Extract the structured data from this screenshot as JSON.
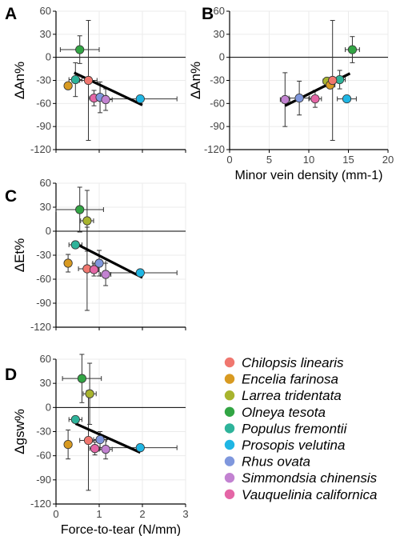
{
  "legend": {
    "species": [
      {
        "name": "Chilopsis linearis",
        "color": "#F0776F"
      },
      {
        "name": "Encelia farinosa",
        "color": "#D89A21"
      },
      {
        "name": "Larrea tridentata",
        "color": "#A8B42E"
      },
      {
        "name": "Olneya tesota",
        "color": "#32A544"
      },
      {
        "name": "Populus fremontii",
        "color": "#2EB39A"
      },
      {
        "name": "Prosopis velutina",
        "color": "#1FB6E4"
      },
      {
        "name": "Rhus ovata",
        "color": "#7F97DD"
      },
      {
        "name": "Simmondsia chinensis",
        "color": "#C282D1"
      },
      {
        "name": "Vauquelinia californica",
        "color": "#E466A6"
      }
    ]
  },
  "chart_data": [
    {
      "type": "scatter",
      "panel": "A",
      "ylabel": "ΔAn%",
      "xlabel": "",
      "xlim": [
        0,
        3
      ],
      "ylim": [
        -120,
        60
      ],
      "x_ticks": [
        0,
        1,
        2,
        3
      ],
      "x_tick_labels": [],
      "y_ticks": [
        -120,
        -90,
        -60,
        -30,
        0,
        30,
        60
      ],
      "points": [
        {
          "species": "Olneya tesota",
          "x": 0.55,
          "y": 10,
          "xerr": 0.45,
          "yerr": 18
        },
        {
          "species": "Populus fremontii",
          "x": 0.45,
          "y": -29,
          "xerr": 0.15,
          "yerr": 22
        },
        {
          "species": "Encelia farinosa",
          "x": 0.28,
          "y": -37,
          "xerr": 0,
          "yerr": 0
        },
        {
          "species": "Chilopsis linearis",
          "x": 0.75,
          "y": -30,
          "xerr": 0.2,
          "yerr": 78
        },
        {
          "species": "Vauquelinia californica",
          "x": 0.88,
          "y": -53,
          "xerr": 0.12,
          "yerr": 10
        },
        {
          "species": "Rhus ovata",
          "x": 1.02,
          "y": -52,
          "xerr": 0.15,
          "yerr": 20
        },
        {
          "species": "Simmondsia chinensis",
          "x": 1.15,
          "y": -55,
          "xerr": 0.15,
          "yerr": 14
        },
        {
          "species": "Prosopis velutina",
          "x": 1.95,
          "y": -54,
          "xerr": 0.85,
          "yerr": 0
        }
      ],
      "fit_line": {
        "x1": 0.42,
        "y1": -20,
        "x2": 2.0,
        "y2": -62
      }
    },
    {
      "type": "scatter",
      "panel": "B",
      "ylabel": "ΔAn%",
      "xlabel": "Minor vein density (mm-1)",
      "xlim": [
        0,
        20
      ],
      "ylim": [
        -120,
        60
      ],
      "x_ticks": [
        0,
        5,
        10,
        15,
        20
      ],
      "x_tick_labels": [
        "0",
        "5",
        "10",
        "15",
        "20"
      ],
      "y_ticks": [
        -120,
        -90,
        -60,
        -30,
        0,
        30,
        60
      ],
      "points": [
        {
          "species": "Olneya tesota",
          "x": 15.5,
          "y": 10,
          "xerr": 0.9,
          "yerr": 17
        },
        {
          "species": "Populus fremontii",
          "x": 13.9,
          "y": -29,
          "xerr": 0.7,
          "yerr": 12
        },
        {
          "species": "Larrea tridentata",
          "x": 12.3,
          "y": -31,
          "xerr": 0.5,
          "yerr": 0
        },
        {
          "species": "Encelia farinosa",
          "x": 12.7,
          "y": -36,
          "xerr": 0.6,
          "yerr": 0
        },
        {
          "species": "Chilopsis linearis",
          "x": 13.0,
          "y": -30,
          "xerr": 0.6,
          "yerr": 78
        },
        {
          "species": "Prosopis velutina",
          "x": 14.8,
          "y": -54,
          "xerr": 1.2,
          "yerr": 0
        },
        {
          "species": "Rhus ovata",
          "x": 8.8,
          "y": -53,
          "xerr": 1.3,
          "yerr": 22
        },
        {
          "species": "Vauquelinia californica",
          "x": 10.8,
          "y": -54,
          "xerr": 0.8,
          "yerr": 11
        },
        {
          "species": "Simmondsia chinensis",
          "x": 7.0,
          "y": -55,
          "xerr": 0.6,
          "yerr": 35
        }
      ],
      "fit_line": {
        "x1": 7.0,
        "y1": -63,
        "x2": 15.2,
        "y2": -21
      }
    },
    {
      "type": "scatter",
      "panel": "C",
      "ylabel": "ΔEt%",
      "xlabel": "",
      "xlim": [
        0,
        3
      ],
      "ylim": [
        -120,
        60
      ],
      "x_ticks": [
        0,
        1,
        2,
        3
      ],
      "x_tick_labels": [],
      "y_ticks": [
        -120,
        -90,
        -60,
        -30,
        0,
        30,
        60
      ],
      "points": [
        {
          "species": "Olneya tesota",
          "x": 0.55,
          "y": 27,
          "xerr": 0.55,
          "yerr": 28
        },
        {
          "species": "Larrea tridentata",
          "x": 0.72,
          "y": 13,
          "xerr": 0.15,
          "yerr": 38
        },
        {
          "species": "Populus fremontii",
          "x": 0.45,
          "y": -17,
          "xerr": 0.15,
          "yerr": 0
        },
        {
          "species": "Encelia farinosa",
          "x": 0.28,
          "y": -40,
          "xerr": 0,
          "yerr": 11
        },
        {
          "species": "Chilopsis linearis",
          "x": 0.72,
          "y": -47,
          "xerr": 0.2,
          "yerr": 52
        },
        {
          "species": "Vauquelinia californica",
          "x": 0.88,
          "y": -48,
          "xerr": 0.1,
          "yerr": 8
        },
        {
          "species": "Rhus ovata",
          "x": 1.0,
          "y": -40,
          "xerr": 0.15,
          "yerr": 16
        },
        {
          "species": "Simmondsia chinensis",
          "x": 1.15,
          "y": -54,
          "xerr": 0.12,
          "yerr": 14
        },
        {
          "species": "Prosopis velutina",
          "x": 1.95,
          "y": -52,
          "xerr": 0.85,
          "yerr": 0
        }
      ],
      "fit_line": {
        "x1": 0.4,
        "y1": -14,
        "x2": 2.0,
        "y2": -58
      }
    },
    {
      "type": "scatter",
      "panel": "D",
      "ylabel": "Δgsw%",
      "xlabel": "Force-to-tear (N/mm)",
      "xlim": [
        0,
        3
      ],
      "ylim": [
        -120,
        60
      ],
      "x_ticks": [
        0,
        1,
        2,
        3
      ],
      "x_tick_labels": [
        "0",
        "1",
        "2",
        "3"
      ],
      "y_ticks": [
        -120,
        -90,
        -60,
        -30,
        0,
        30,
        60
      ],
      "points": [
        {
          "species": "Olneya tesota",
          "x": 0.6,
          "y": 36,
          "xerr": 0.45,
          "yerr": 30
        },
        {
          "species": "Larrea tridentata",
          "x": 0.78,
          "y": 17,
          "xerr": 0.15,
          "yerr": 38
        },
        {
          "species": "Populus fremontii",
          "x": 0.45,
          "y": -15,
          "xerr": 0.15,
          "yerr": 0
        },
        {
          "species": "Encelia farinosa",
          "x": 0.28,
          "y": -46,
          "xerr": 0,
          "yerr": 18
        },
        {
          "species": "Chilopsis linearis",
          "x": 0.75,
          "y": -41,
          "xerr": 0.2,
          "yerr": 62
        },
        {
          "species": "Vauquelinia californica",
          "x": 0.9,
          "y": -51,
          "xerr": 0.12,
          "yerr": 8
        },
        {
          "species": "Rhus ovata",
          "x": 1.02,
          "y": -40,
          "xerr": 0.15,
          "yerr": 10
        },
        {
          "species": "Simmondsia chinensis",
          "x": 1.15,
          "y": -52,
          "xerr": 0.15,
          "yerr": 12
        },
        {
          "species": "Prosopis velutina",
          "x": 1.95,
          "y": -50,
          "xerr": 0.85,
          "yerr": 0
        }
      ],
      "fit_line": {
        "x1": 0.45,
        "y1": -20,
        "x2": 1.95,
        "y2": -56
      }
    }
  ]
}
